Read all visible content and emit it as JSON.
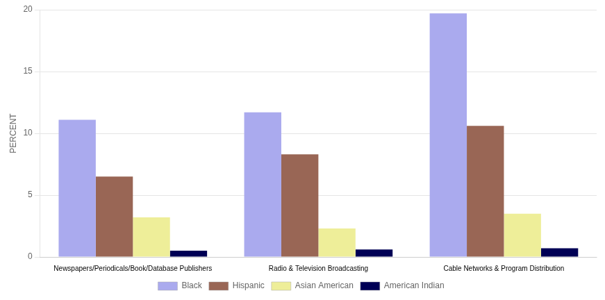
{
  "chart_data": {
    "type": "bar",
    "categories": [
      "Newspapers/Periodicals/Book/Database Publishers",
      "Radio & Television Broadcasting",
      "Cable Networks & Program Distribution"
    ],
    "series": [
      {
        "name": "Black",
        "color": "#aaaaee",
        "values": [
          11.1,
          11.7,
          19.7
        ]
      },
      {
        "name": "Hispanic",
        "color": "#996655",
        "values": [
          6.5,
          8.3,
          10.6
        ]
      },
      {
        "name": "Asian American",
        "color": "#eeee99",
        "values": [
          3.2,
          2.3,
          3.5
        ]
      },
      {
        "name": "American Indian",
        "color": "#000055",
        "values": [
          0.5,
          0.6,
          0.7
        ]
      }
    ],
    "ylabel": "PERCENT",
    "ylim": [
      0,
      20
    ],
    "yticks": [
      0,
      5,
      10,
      15,
      20
    ],
    "grid": true,
    "legend": "bottom"
  }
}
